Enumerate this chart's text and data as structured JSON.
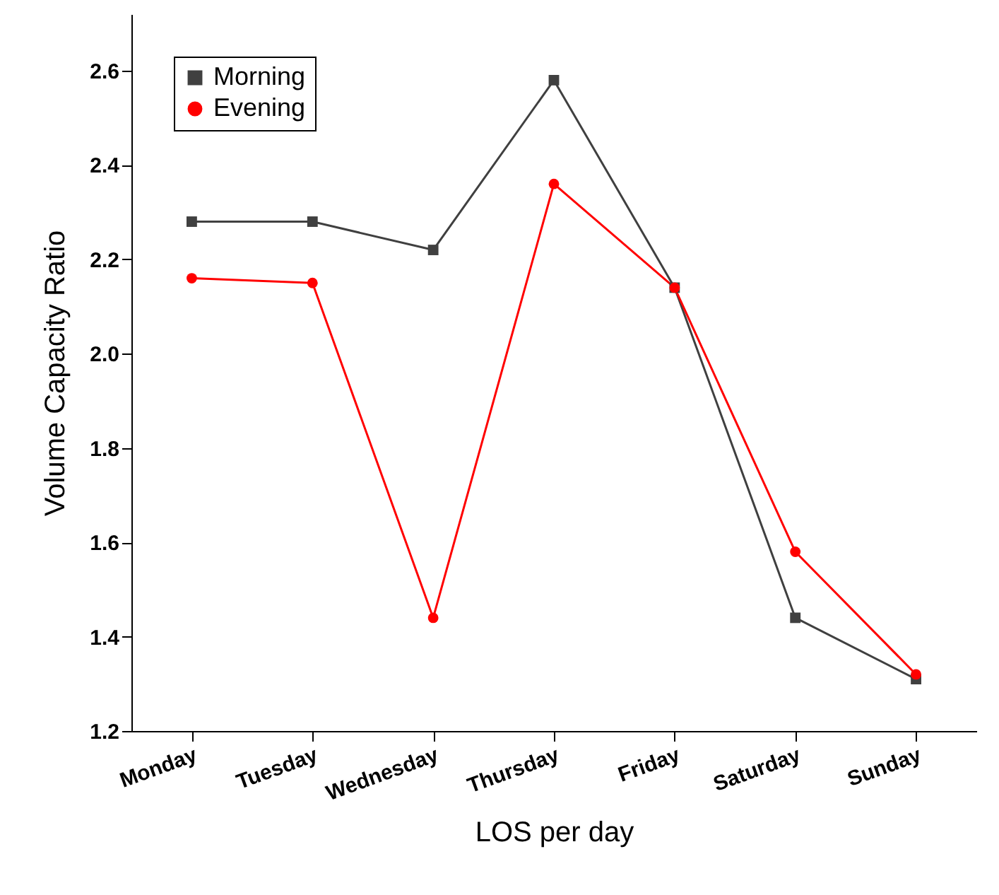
{
  "chart_data": {
    "type": "line",
    "xlabel": "LOS per day",
    "ylabel": "Volume Capacity Ratio",
    "categories": [
      "Monday",
      "Tuesday",
      "Wednesday",
      "Thursday",
      "Friday",
      "Saturday",
      "Sunday"
    ],
    "series": [
      {
        "name": "Morning",
        "color": "#404040",
        "marker": "square",
        "values": [
          2.28,
          2.28,
          2.22,
          2.58,
          2.14,
          1.44,
          1.31
        ]
      },
      {
        "name": "Evening",
        "color": "#ff0000",
        "marker": "circle",
        "values": [
          2.16,
          2.15,
          1.44,
          2.36,
          2.14,
          1.58,
          1.32
        ]
      }
    ],
    "ylim": [
      1.2,
      2.72
    ],
    "yticks": [
      1.2,
      1.4,
      1.6,
      1.8,
      {
        "value": 2,
        "label": "2.0"
      },
      2.2,
      2.4,
      2.6
    ],
    "grid": false,
    "legend": "top left",
    "line_style": "solid"
  }
}
